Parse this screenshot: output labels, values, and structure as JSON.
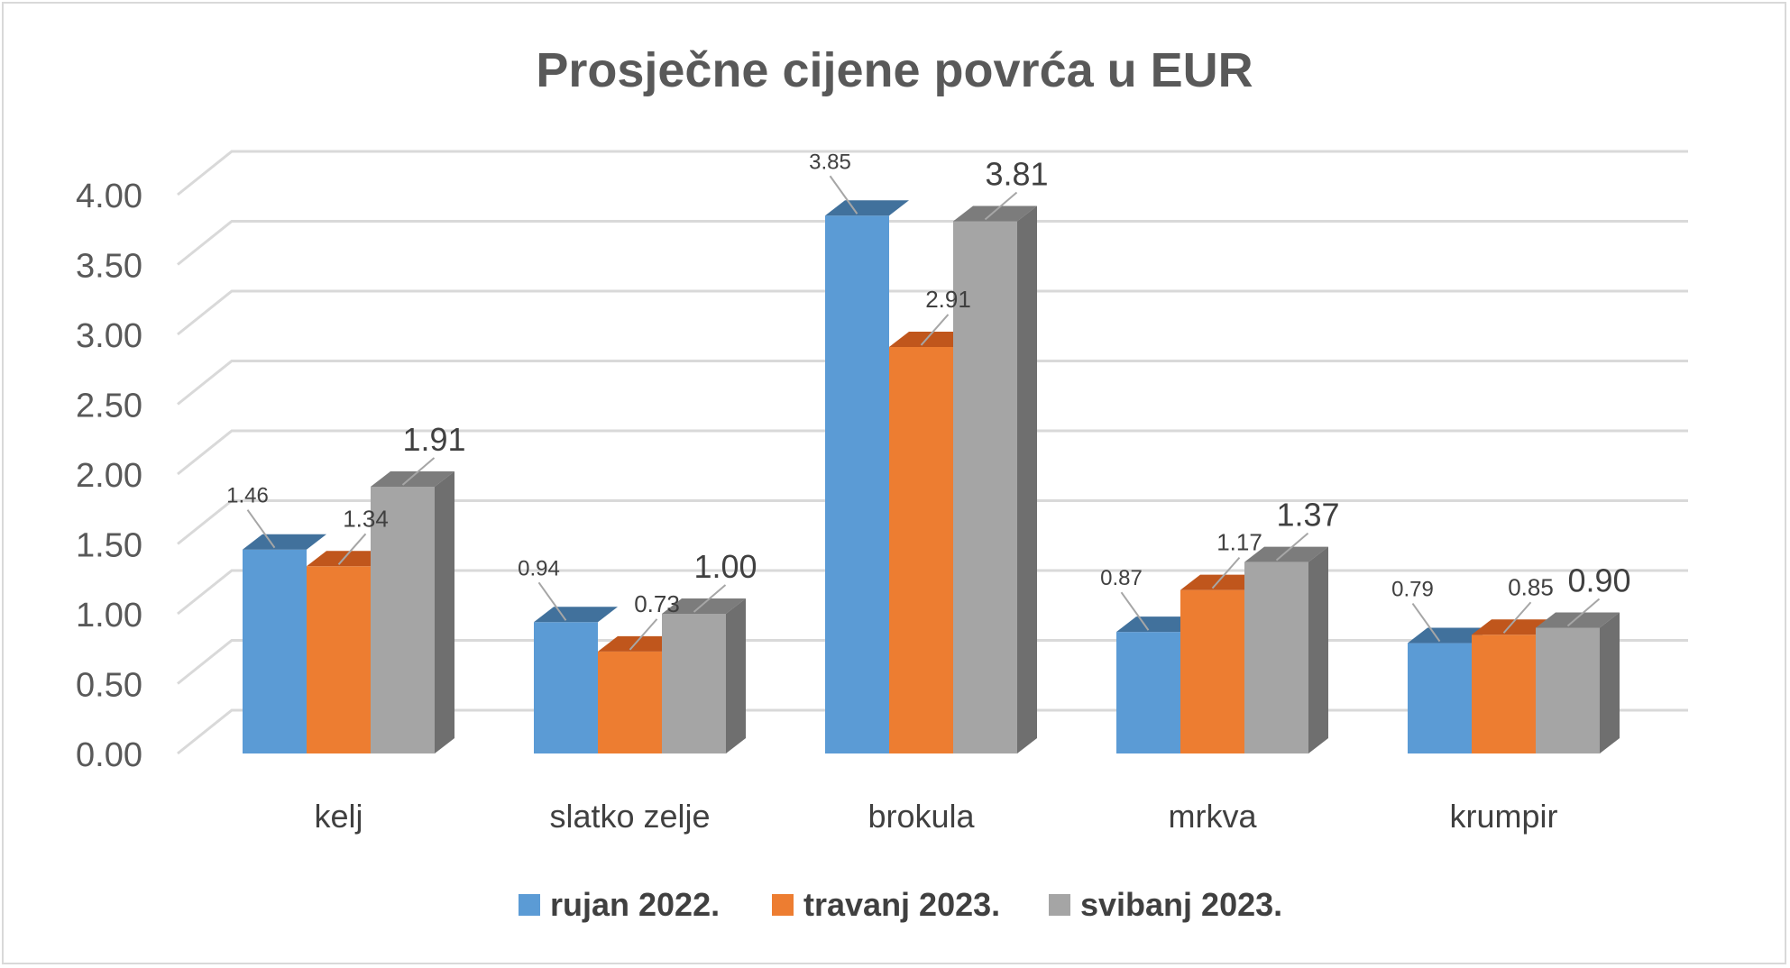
{
  "chart_data": {
    "type": "bar",
    "title": "Prosječne cijene povrća u EUR",
    "categories": [
      "kelj",
      "slatko zelje",
      "brokula",
      "mrkva",
      "krumpir"
    ],
    "series": [
      {
        "name": "rujan 2022.",
        "values": [
          1.46,
          0.94,
          3.85,
          0.87,
          0.79
        ],
        "color": "#5b9bd5",
        "top": "#41719c",
        "side": "#41719c"
      },
      {
        "name": "travanj 2023.",
        "values": [
          1.34,
          0.73,
          2.91,
          1.17,
          0.85
        ],
        "color": "#ed7d31",
        "top": "#c0561c",
        "side": "#ae5a21"
      },
      {
        "name": "svibanj 2023.",
        "values": [
          1.91,
          1.0,
          3.81,
          1.37,
          0.9
        ],
        "color": "#a5a5a5",
        "top": "#7c7c7c",
        "side": "#6f6f6f"
      }
    ],
    "data_labels": [
      [
        "1.46",
        "0.94",
        "3.85",
        "0.87",
        "0.79"
      ],
      [
        "1.34",
        "0.73",
        "2.91",
        "1.17",
        "0.85"
      ],
      [
        "1.91",
        "1.00",
        "3.81",
        "1.37",
        "0.90"
      ]
    ],
    "y_ticks": [
      "0.00",
      "0.50",
      "1.00",
      "1.50",
      "2.00",
      "2.50",
      "3.00",
      "3.50",
      "4.00"
    ],
    "ylim": [
      0,
      4.2
    ],
    "legend_position": "bottom",
    "grid": true
  }
}
